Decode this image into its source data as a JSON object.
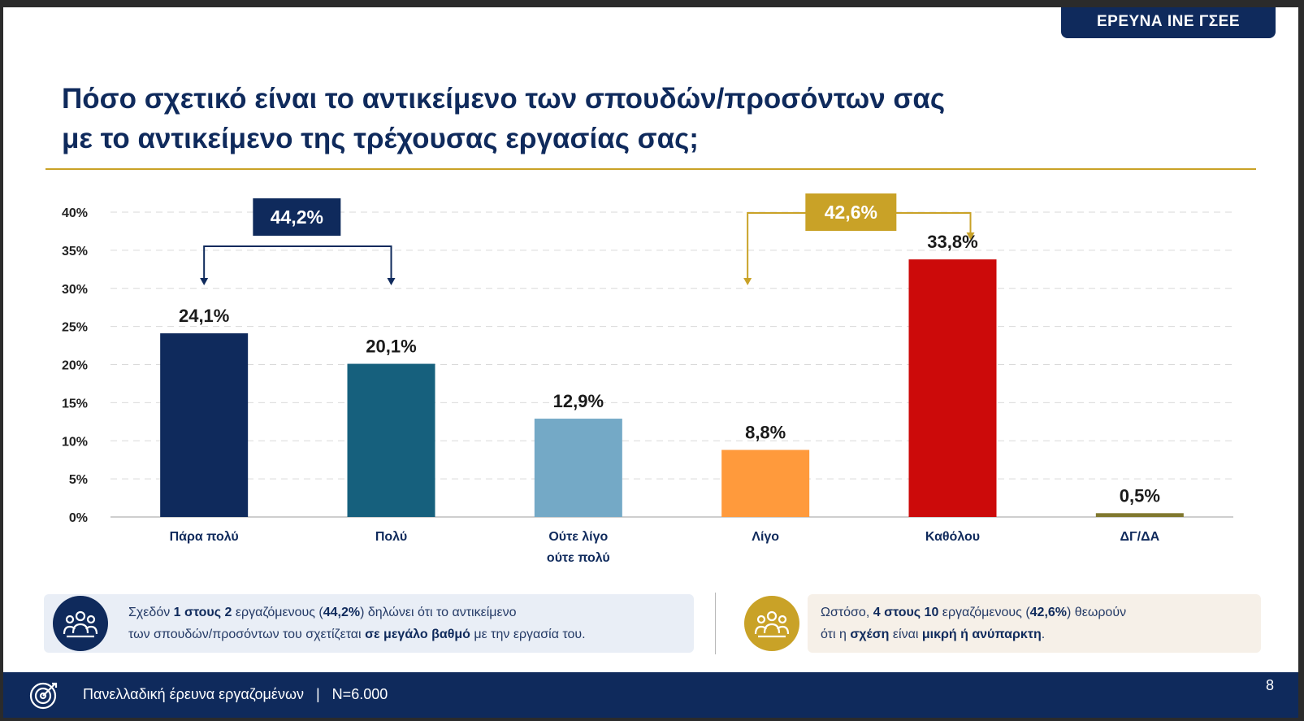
{
  "header_tag": "ΕΡΕΥΝΑ ΙΝΕ ΓΣΕΕ",
  "title_lines": [
    "Πόσο σχετικό είναι το αντικείμενο των σπουδών/προσόντων σας",
    "με το αντικείμενο της τρέχουσας εργασίας σας;"
  ],
  "chart_data": {
    "type": "bar",
    "title": "Πόσο σχετικό είναι το αντικείμενο των σπουδών/προσόντων σας με το αντικείμενο της τρέχουσας εργασίας σας;",
    "categories": [
      [
        "Πάρα πολύ"
      ],
      [
        "Πολύ"
      ],
      [
        "Ούτε λίγο",
        "ούτε πολύ"
      ],
      [
        "Λίγο"
      ],
      [
        "Καθόλου"
      ],
      [
        "ΔΓ/ΔΑ"
      ]
    ],
    "values": [
      24.1,
      20.1,
      12.9,
      8.8,
      33.8,
      0.5
    ],
    "value_labels": [
      "24,1%",
      "20,1%",
      "12,9%",
      "8,8%",
      "33,8%",
      "0,5%"
    ],
    "bar_colors": [
      "#0f2a5c",
      "#16607d",
      "#74a9c6",
      "#ff9a3c",
      "#cc0a0a",
      "#80782e"
    ],
    "ylim": [
      0,
      40
    ],
    "yticks": [
      0,
      5,
      10,
      15,
      20,
      25,
      30,
      35,
      40
    ],
    "ytick_labels": [
      "0%",
      "5%",
      "10%",
      "15%",
      "20%",
      "25%",
      "30%",
      "35%",
      "40%"
    ],
    "grid": true,
    "group_annotations": [
      {
        "label": "44,2%",
        "from": 0,
        "to": 1,
        "color": "#0f2a5c"
      },
      {
        "label": "42,6%",
        "from": 3,
        "to": 4,
        "color": "#c9a227"
      }
    ]
  },
  "callouts": {
    "left": {
      "line1": [
        {
          "t": "Σχεδόν ",
          "b": false
        },
        {
          "t": "1 στους 2",
          "b": true
        },
        {
          "t": " εργαζόμενους (",
          "b": false
        },
        {
          "t": "44,2%",
          "b": true
        },
        {
          "t": ") δηλώνει ότι το αντικείμενο",
          "b": false
        }
      ],
      "line2": [
        {
          "t": "των σπουδών/προσόντων του σχετίζεται ",
          "b": false
        },
        {
          "t": "σε μεγάλο βαθμό",
          "b": true
        },
        {
          "t": " με την εργασία του.",
          "b": false
        }
      ]
    },
    "right": {
      "line1": [
        {
          "t": "Ωστόσο, ",
          "b": false
        },
        {
          "t": "4 στους 10",
          "b": true
        },
        {
          "t": " εργαζόμενους (",
          "b": false
        },
        {
          "t": "42,6%",
          "b": true
        },
        {
          "t": ") θεωρούν",
          "b": false
        }
      ],
      "line2": [
        {
          "t": "ότι η ",
          "b": false
        },
        {
          "t": "σχέση",
          "b": true
        },
        {
          "t": " είναι ",
          "b": false
        },
        {
          "t": "μικρή ή ανύπαρκτη",
          "b": true
        },
        {
          "t": ".",
          "b": false
        }
      ]
    }
  },
  "footer": {
    "text": "Πανελλαδική έρευνα εργαζομένων   |   N=6.000",
    "page_number": "8"
  },
  "icons": {
    "callout": "people-group-icon",
    "footer": "target-icon"
  }
}
